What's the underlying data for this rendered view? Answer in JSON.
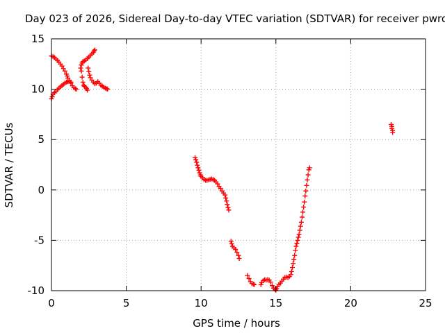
{
  "chart_data": {
    "type": "scatter",
    "title": "Day 023 of 2026, Sidereal Day-to-day VTEC variation (SDTVAR) for receiver pwro",
    "xlabel": "GPS time / hours",
    "ylabel": "SDTVAR / TECUs",
    "xlim": [
      0,
      25
    ],
    "ylim": [
      -10,
      15
    ],
    "xticks": [
      0,
      5,
      10,
      15,
      20,
      25
    ],
    "yticks": [
      -10,
      -5,
      0,
      5,
      10,
      15
    ],
    "grid": true,
    "marker": "+",
    "colors": {
      "series": "#ff0000",
      "grid": "#a0a0a0",
      "axis": "#000000",
      "background": "#ffffff"
    },
    "series": [
      {
        "name": "SDTVAR",
        "points": [
          [
            0.0,
            13.3
          ],
          [
            0.1,
            13.25
          ],
          [
            0.2,
            13.15
          ],
          [
            0.3,
            13.0
          ],
          [
            0.4,
            12.85
          ],
          [
            0.5,
            12.7
          ],
          [
            0.6,
            12.5
          ],
          [
            0.7,
            12.3
          ],
          [
            0.8,
            12.05
          ],
          [
            0.9,
            11.8
          ],
          [
            1.0,
            11.5
          ],
          [
            1.05,
            11.3
          ],
          [
            1.1,
            11.1
          ],
          [
            1.2,
            10.85
          ],
          [
            1.3,
            10.6
          ],
          [
            1.4,
            10.35
          ],
          [
            1.5,
            10.15
          ],
          [
            1.6,
            10.05
          ],
          [
            1.65,
            10.0
          ],
          [
            0.0,
            9.05
          ],
          [
            0.05,
            9.25
          ],
          [
            0.1,
            9.5
          ],
          [
            0.2,
            9.65
          ],
          [
            0.3,
            9.8
          ],
          [
            0.4,
            9.95
          ],
          [
            0.5,
            10.1
          ],
          [
            0.6,
            10.25
          ],
          [
            0.7,
            10.35
          ],
          [
            0.8,
            10.5
          ],
          [
            0.9,
            10.6
          ],
          [
            1.0,
            10.7
          ],
          [
            1.1,
            10.75
          ],
          [
            1.2,
            10.8
          ],
          [
            1.3,
            10.7
          ],
          [
            1.95,
            12.1
          ],
          [
            2.0,
            12.4
          ],
          [
            2.05,
            12.6
          ],
          [
            2.1,
            12.75
          ],
          [
            2.2,
            12.8
          ],
          [
            2.3,
            12.9
          ],
          [
            2.4,
            13.05
          ],
          [
            2.5,
            13.2
          ],
          [
            2.6,
            13.35
          ],
          [
            2.7,
            13.5
          ],
          [
            2.8,
            13.65
          ],
          [
            2.85,
            13.8
          ],
          [
            2.9,
            13.9
          ],
          [
            2.0,
            11.8
          ],
          [
            2.05,
            11.2
          ],
          [
            2.1,
            10.7
          ],
          [
            2.15,
            10.4
          ],
          [
            2.2,
            10.3
          ],
          [
            2.3,
            10.2
          ],
          [
            2.35,
            10.05
          ],
          [
            2.4,
            9.9
          ],
          [
            2.45,
            12.1
          ],
          [
            2.5,
            11.75
          ],
          [
            2.55,
            11.4
          ],
          [
            2.6,
            11.15
          ],
          [
            2.7,
            10.9
          ],
          [
            2.8,
            10.7
          ],
          [
            2.9,
            10.55
          ],
          [
            3.0,
            10.6
          ],
          [
            3.1,
            10.75
          ],
          [
            3.2,
            10.6
          ],
          [
            3.3,
            10.4
          ],
          [
            3.4,
            10.3
          ],
          [
            3.5,
            10.2
          ],
          [
            3.6,
            10.1
          ],
          [
            3.7,
            10.05
          ],
          [
            3.75,
            10.0
          ],
          [
            9.6,
            3.2
          ],
          [
            9.65,
            3.0
          ],
          [
            9.7,
            2.75
          ],
          [
            9.75,
            2.45
          ],
          [
            9.8,
            2.2
          ],
          [
            9.85,
            1.95
          ],
          [
            9.9,
            1.7
          ],
          [
            9.95,
            1.5
          ],
          [
            10.0,
            1.35
          ],
          [
            10.1,
            1.2
          ],
          [
            10.2,
            1.05
          ],
          [
            10.3,
            0.95
          ],
          [
            10.4,
            0.95
          ],
          [
            10.5,
            1.0
          ],
          [
            10.6,
            1.05
          ],
          [
            10.7,
            1.1
          ],
          [
            10.8,
            1.05
          ],
          [
            10.9,
            0.95
          ],
          [
            11.0,
            0.8
          ],
          [
            11.1,
            0.6
          ],
          [
            11.2,
            0.35
          ],
          [
            11.3,
            0.15
          ],
          [
            11.4,
            -0.1
          ],
          [
            11.5,
            -0.3
          ],
          [
            11.6,
            -0.5
          ],
          [
            11.65,
            -0.8
          ],
          [
            11.7,
            -1.1
          ],
          [
            11.75,
            -1.45
          ],
          [
            11.8,
            -1.75
          ],
          [
            11.85,
            -2.0
          ],
          [
            12.0,
            -5.1
          ],
          [
            12.05,
            -5.35
          ],
          [
            12.1,
            -5.6
          ],
          [
            12.2,
            -5.75
          ],
          [
            12.3,
            -5.9
          ],
          [
            12.4,
            -6.2
          ],
          [
            12.5,
            -6.5
          ],
          [
            12.55,
            -6.8
          ],
          [
            13.1,
            -8.5
          ],
          [
            13.2,
            -8.8
          ],
          [
            13.3,
            -9.1
          ],
          [
            13.4,
            -9.3
          ],
          [
            13.5,
            -9.35
          ],
          [
            13.55,
            -9.4
          ],
          [
            14.0,
            -9.4
          ],
          [
            14.05,
            -9.2
          ],
          [
            14.15,
            -9.0
          ],
          [
            14.25,
            -8.9
          ],
          [
            14.35,
            -8.95
          ],
          [
            14.45,
            -8.9
          ],
          [
            14.55,
            -8.95
          ],
          [
            14.65,
            -9.15
          ],
          [
            14.75,
            -9.5
          ],
          [
            14.85,
            -9.75
          ],
          [
            14.95,
            -9.9
          ],
          [
            15.0,
            -9.95
          ],
          [
            15.05,
            -9.8
          ],
          [
            15.1,
            -9.6
          ],
          [
            15.2,
            -9.4
          ],
          [
            15.3,
            -9.25
          ],
          [
            15.4,
            -9.05
          ],
          [
            15.5,
            -8.85
          ],
          [
            15.6,
            -8.7
          ],
          [
            15.7,
            -8.65
          ],
          [
            15.8,
            -8.7
          ],
          [
            15.9,
            -8.6
          ],
          [
            16.0,
            -8.4
          ],
          [
            16.05,
            -8.1
          ],
          [
            16.1,
            -7.7
          ],
          [
            16.15,
            -7.3
          ],
          [
            16.2,
            -6.9
          ],
          [
            16.25,
            -6.5
          ],
          [
            16.3,
            -6.0
          ],
          [
            16.35,
            -5.6
          ],
          [
            16.4,
            -5.3
          ],
          [
            16.45,
            -5.0
          ],
          [
            16.5,
            -4.7
          ],
          [
            16.55,
            -4.4
          ],
          [
            16.6,
            -4.0
          ],
          [
            16.65,
            -3.6
          ],
          [
            16.7,
            -3.2
          ],
          [
            16.75,
            -2.7
          ],
          [
            16.8,
            -2.2
          ],
          [
            16.85,
            -1.7
          ],
          [
            16.9,
            -1.2
          ],
          [
            16.95,
            -0.6
          ],
          [
            17.0,
            -0.1
          ],
          [
            17.05,
            0.45
          ],
          [
            17.1,
            1.0
          ],
          [
            17.15,
            1.5
          ],
          [
            17.2,
            2.0
          ],
          [
            17.25,
            2.2
          ],
          [
            22.7,
            6.5
          ],
          [
            22.75,
            6.3
          ],
          [
            22.75,
            6.1
          ],
          [
            22.8,
            5.9
          ],
          [
            22.8,
            5.7
          ]
        ]
      }
    ]
  }
}
